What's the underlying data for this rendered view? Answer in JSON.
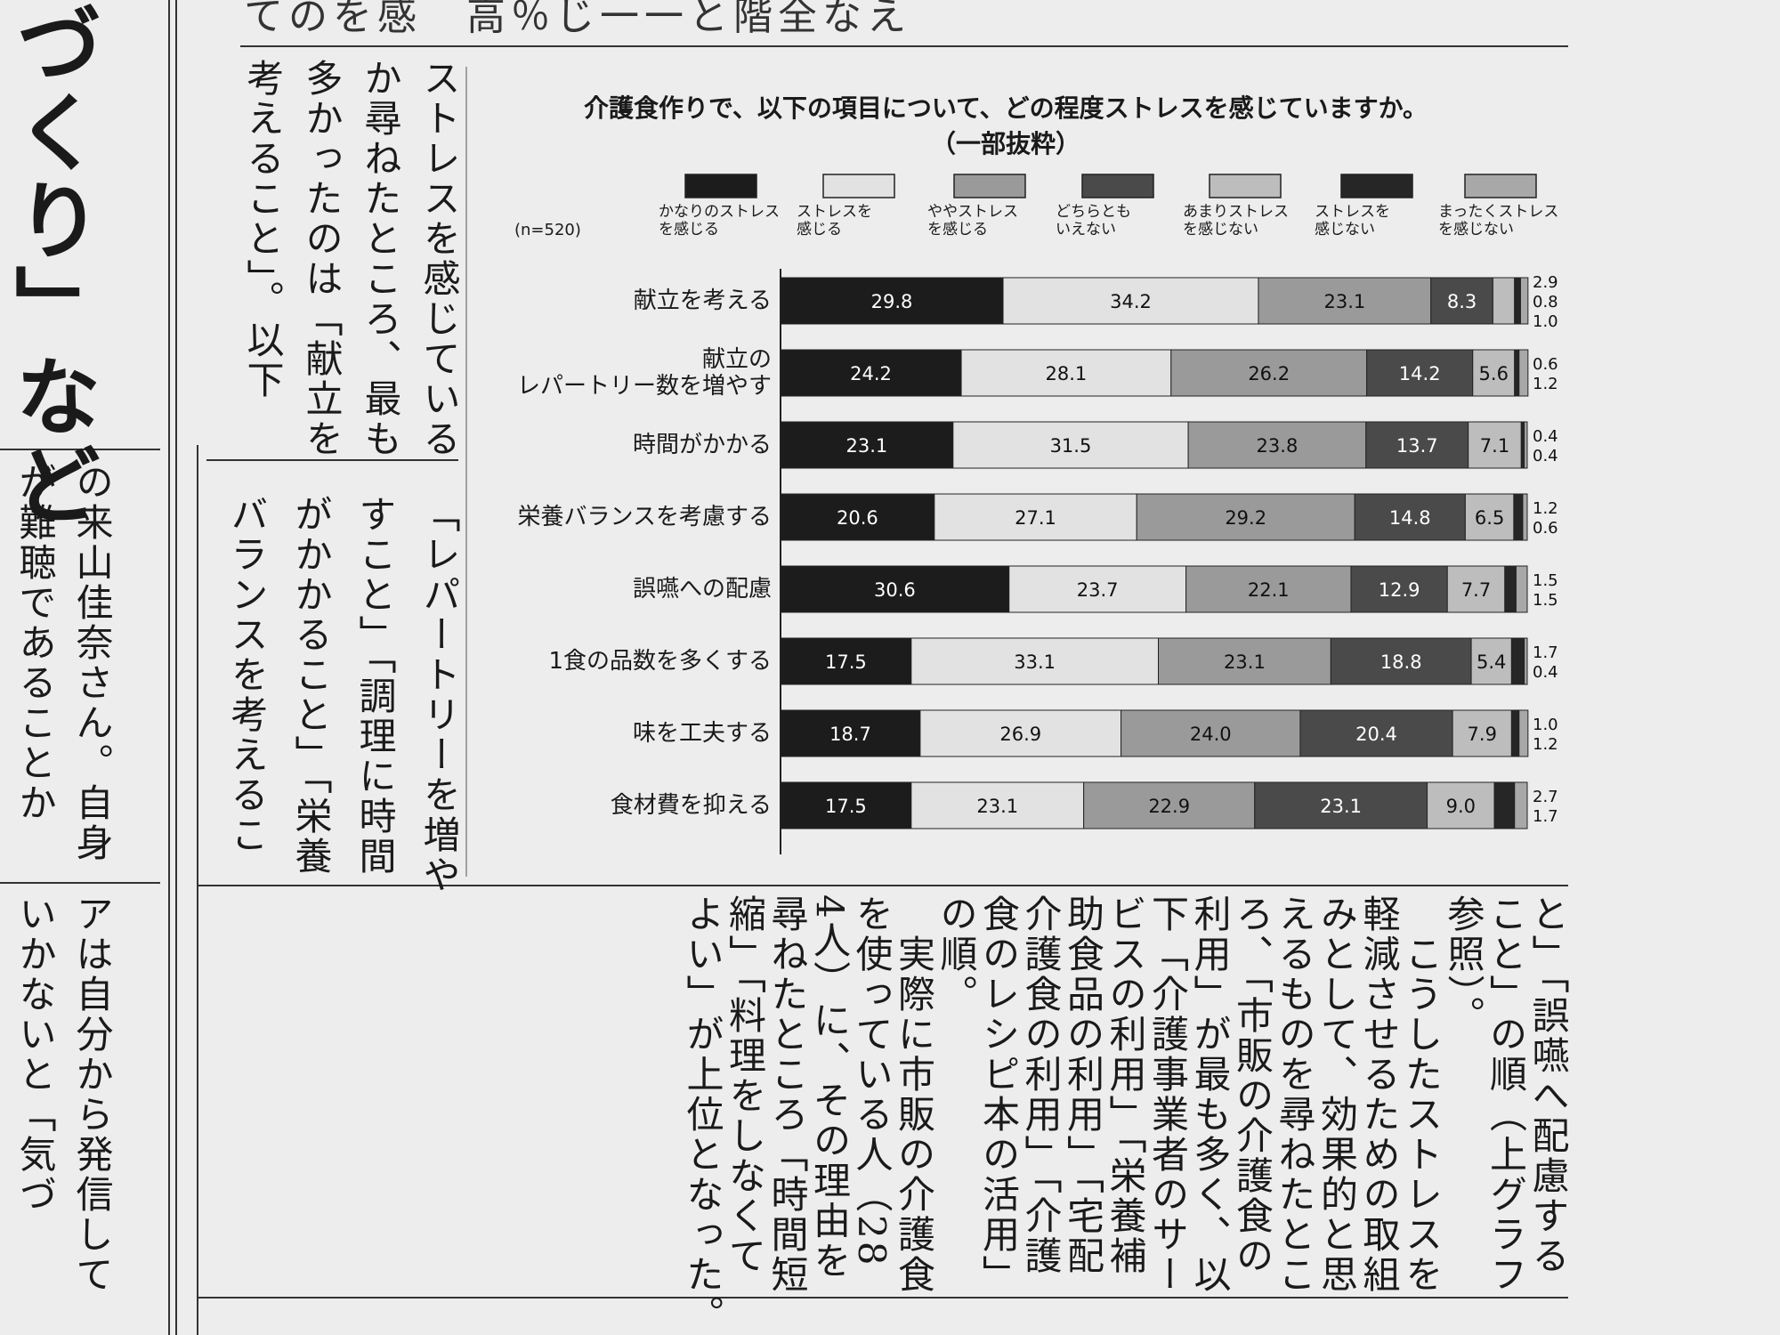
{
  "header_fragment": "てのを感　高％じ一一と階全なえ",
  "headline": "づくり」など",
  "article_upper": [
    "ストレスを感じている",
    "か尋ねたところ、最も",
    "多かったのは「献立を",
    "考えること」。以下"
  ],
  "article_middle": [
    "「レパートリーを増や",
    "すこと」「調理に時間",
    "がかかること」「栄養",
    "バランスを考えるこ"
  ],
  "side_upper": [
    "の来山佳奈さん。自身",
    "が難聴であることか"
  ],
  "side_lower": [
    "アは自分から発信して",
    "いかないと「気づ"
  ],
  "article_lower": [
    "と」「誤嚥へ配慮する",
    "こと」の順（上グラフ",
    "参照）。",
    "　こうしたストレスを",
    "軽減させるための取組",
    "みとして、効果的と思",
    "えるものを尋ねたとこ",
    "ろ、「市販の介護食の",
    "利用」が最も多く、以",
    "下「介護事業者のサー",
    "ビスの利用」「栄養補",
    "助食品の利用」「宅配",
    "介護食の利用」「介護",
    "食のレシピ本の活用」",
    "の順。",
    "　実際に市販の介護食",
    "を使っている人（28",
    "4人）に、その理由を",
    "尋ねたところ「時間短",
    "縮」「料理をしなくて",
    "よい」が上位となった。"
  ],
  "chart_data": {
    "type": "stacked_bar_horizontal",
    "title": "介護食作りで、以下の項目について、どの程度ストレスを感じていますか。",
    "subtitle": "（一部抜粋）",
    "note": "(n=520)",
    "xlim": [
      0,
      100
    ],
    "categories": [
      "献立を考える",
      "献立の\nレパートリー数を増やす",
      "時間がかかる",
      "栄養バランスを考慮する",
      "誤嚥への配慮",
      "1食の品数を多くする",
      "味を工夫する",
      "食材費を抑える"
    ],
    "series": [
      {
        "name": "かなりのストレス\nを感じる",
        "color": "#1c1c1c",
        "values": [
          29.8,
          24.2,
          23.1,
          20.6,
          30.6,
          17.5,
          18.7,
          17.5
        ],
        "value_labels": [
          "29.8",
          "24.2",
          "23.1",
          "20.6",
          "30.6",
          "17.5",
          "18.7",
          "17.5"
        ]
      },
      {
        "name": "ストレスを\n感じる",
        "color": "#e2e2e2",
        "values": [
          34.2,
          28.1,
          31.5,
          27.1,
          23.7,
          33.1,
          26.9,
          23.1
        ],
        "value_labels": [
          "34.2",
          "28.1",
          "31.5",
          "27.1",
          "23.7",
          "33.1",
          "26.9",
          "23.1"
        ]
      },
      {
        "name": "ややストレス\nを感じる",
        "color": "#9a9a9a",
        "values": [
          23.1,
          26.2,
          23.8,
          29.2,
          22.1,
          23.1,
          24.0,
          22.9
        ],
        "value_labels": [
          "23.1",
          "26.2",
          "23.8",
          "29.2",
          "22.1",
          "23.1",
          "24.0",
          "22.9"
        ]
      },
      {
        "name": "どちらとも\nいえない",
        "color": "#4a4a4a",
        "values": [
          8.3,
          14.2,
          13.7,
          14.8,
          12.9,
          18.8,
          20.4,
          23.1
        ],
        "value_labels": [
          "8.3",
          "14.2",
          "13.7",
          "14.8",
          "12.9",
          "18.8",
          "20.4",
          "23.1"
        ]
      },
      {
        "name": "あまりストレス\nを感じない",
        "color": "#bdbdbd",
        "values": [
          2.9,
          5.6,
          7.1,
          6.5,
          7.7,
          5.4,
          7.9,
          9.0
        ],
        "value_labels": [
          "2.9",
          "5.6",
          "7.1",
          "6.5",
          "7.7",
          "5.4",
          "7.9",
          "9.0"
        ]
      },
      {
        "name": "ストレスを\n感じない",
        "color": "#262626",
        "values": [
          0.8,
          0.6,
          0.4,
          1.2,
          1.5,
          1.7,
          1.0,
          2.7
        ],
        "value_labels": [
          "0.8",
          "0.6",
          "0.4",
          "1.2",
          "1.5",
          "1.7",
          "1.0",
          "2.7"
        ]
      },
      {
        "name": "まったくストレス\nを感じない",
        "color": "#a8a8a8",
        "values": [
          1.0,
          1.2,
          0.4,
          0.6,
          1.5,
          0.4,
          1.2,
          1.7
        ],
        "value_labels": [
          "1.0",
          "1.2",
          "0.4",
          "0.6",
          "1.5",
          "0.4",
          "1.2",
          "1.7"
        ]
      }
    ]
  }
}
